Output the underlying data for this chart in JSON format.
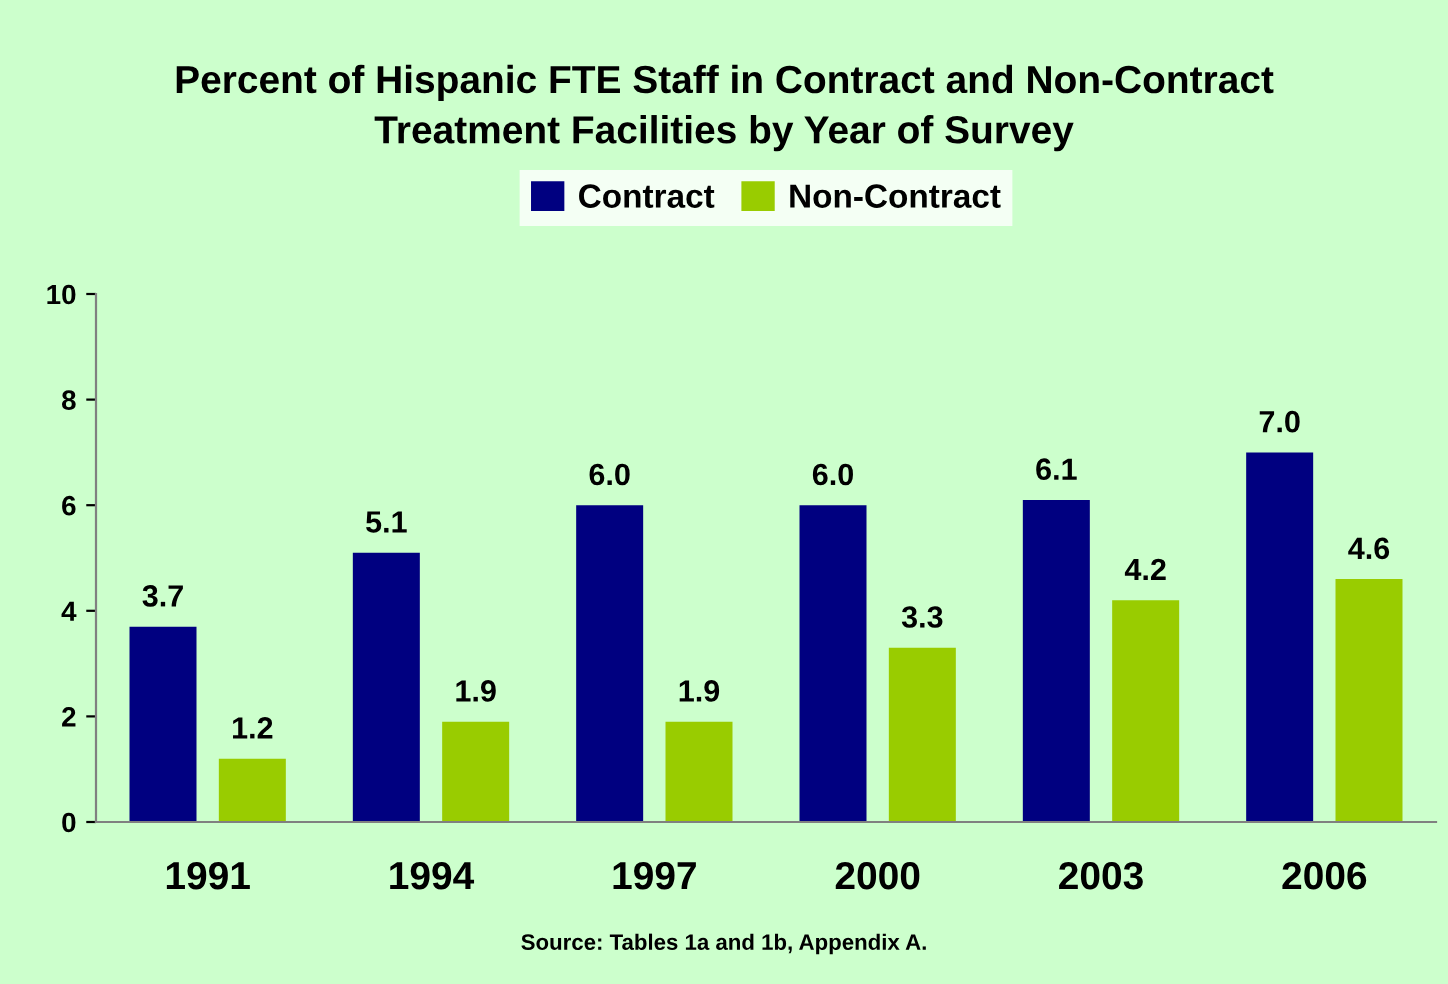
{
  "chart_data": {
    "type": "bar",
    "title": "Percent of Hispanic FTE Staff in Contract and Non-Contract\nTreatment Facilities by Year of Survey",
    "categories": [
      "1991",
      "1994",
      "1997",
      "2000",
      "2003",
      "2006"
    ],
    "series": [
      {
        "name": "Contract",
        "color": "#000080",
        "values": [
          3.7,
          5.1,
          6.0,
          6.0,
          6.1,
          7.0
        ],
        "value_labels": [
          "3.7",
          "5.1",
          "6.0",
          "6.0",
          "6.1",
          "7.0"
        ]
      },
      {
        "name": "Non-Contract",
        "color": "#99cc00",
        "values": [
          1.2,
          1.9,
          1.9,
          3.3,
          4.2,
          4.6
        ],
        "value_labels": [
          "1.2",
          "1.9",
          "1.9",
          "3.3",
          "4.2",
          "4.6"
        ]
      }
    ],
    "ylim": [
      0,
      10
    ],
    "yticks": [
      0,
      2,
      4,
      6,
      8,
      10
    ],
    "grid": false,
    "legend": "top",
    "annotations": [
      "Source: Tables 1a and 1b, Appendix A."
    ]
  }
}
